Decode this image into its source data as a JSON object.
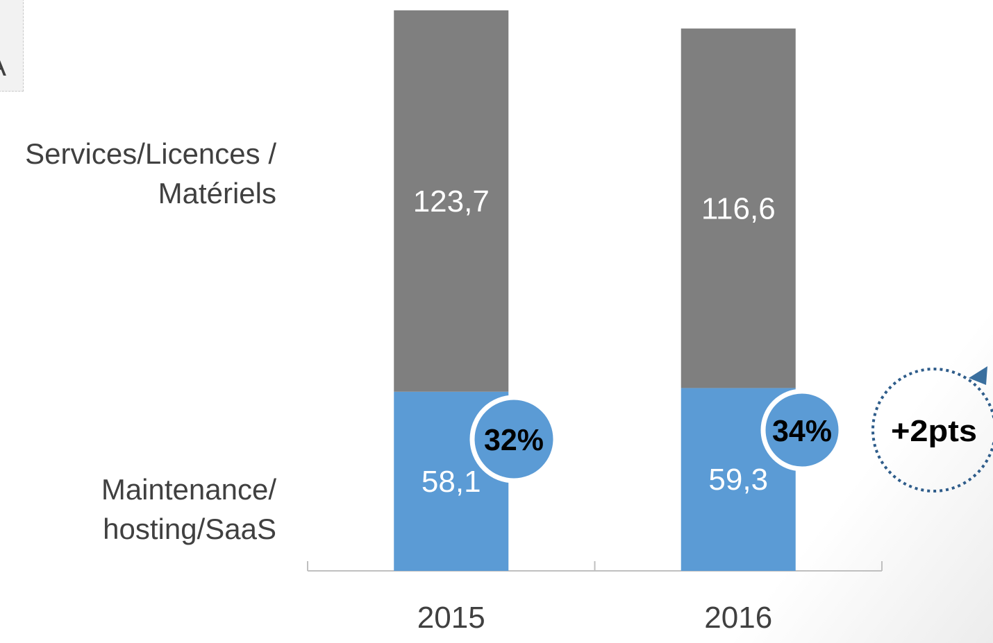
{
  "fragment": "A",
  "chart_data": {
    "type": "bar",
    "stacked": true,
    "categories": [
      "2015",
      "2016"
    ],
    "series": [
      {
        "name": "Maintenance/\nhosting/SaaS",
        "color": "#5b9bd5",
        "values": [
          58.1,
          59.3
        ],
        "value_labels": [
          "58,1",
          "59,3"
        ]
      },
      {
        "name": "Services/Licences /\nMatériels",
        "color": "#7f7f7f",
        "values": [
          123.7,
          116.6
        ],
        "value_labels": [
          "123,7",
          "116,6"
        ]
      }
    ],
    "ylim": [
      0,
      182
    ],
    "annotations": [
      "32%",
      "34%",
      "+2pts"
    ]
  }
}
